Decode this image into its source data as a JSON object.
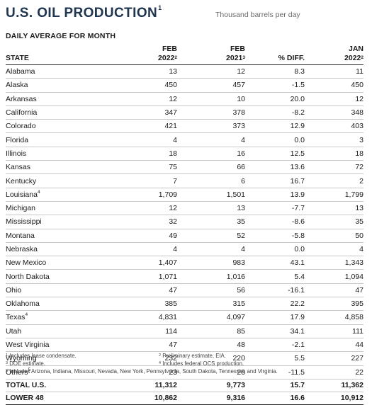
{
  "title": "U.S. OIL PRODUCTION",
  "title_note": "1",
  "units": "Thousand barrels per day",
  "subtitle": "DAILY AVERAGE FOR MONTH",
  "columns": [
    {
      "line1": "",
      "line2": "STATE",
      "note": ""
    },
    {
      "line1": "FEB",
      "line2": "2022",
      "note": "2"
    },
    {
      "line1": "FEB",
      "line2": "2021",
      "note": "3"
    },
    {
      "line1": "",
      "line2": "% DIFF.",
      "note": ""
    },
    {
      "line1": "JAN",
      "line2": "2022",
      "note": "2"
    }
  ],
  "rows": [
    {
      "state": "Alabama",
      "note": "",
      "feb2022": "13",
      "feb2021": "12",
      "diff": "8.3",
      "jan2022": "11"
    },
    {
      "state": "Alaska",
      "note": "",
      "feb2022": "450",
      "feb2021": "457",
      "diff": "-1.5",
      "jan2022": "450"
    },
    {
      "state": "Arkansas",
      "note": "",
      "feb2022": "12",
      "feb2021": "10",
      "diff": "20.0",
      "jan2022": "12"
    },
    {
      "state": "California",
      "note": "",
      "feb2022": "347",
      "feb2021": "378",
      "diff": "-8.2",
      "jan2022": "348"
    },
    {
      "state": "Colorado",
      "note": "",
      "feb2022": "421",
      "feb2021": "373",
      "diff": "12.9",
      "jan2022": "403"
    },
    {
      "state": "Florida",
      "note": "",
      "feb2022": "4",
      "feb2021": "4",
      "diff": "0.0",
      "jan2022": "3"
    },
    {
      "state": "Illinois",
      "note": "",
      "feb2022": "18",
      "feb2021": "16",
      "diff": "12.5",
      "jan2022": "18"
    },
    {
      "state": "Kansas",
      "note": "",
      "feb2022": "75",
      "feb2021": "66",
      "diff": "13.6",
      "jan2022": "72"
    },
    {
      "state": "Kentucky",
      "note": "",
      "feb2022": "7",
      "feb2021": "6",
      "diff": "16.7",
      "jan2022": "2"
    },
    {
      "state": "Louisiana",
      "note": "4",
      "feb2022": "1,709",
      "feb2021": "1,501",
      "diff": "13.9",
      "jan2022": "1,799"
    },
    {
      "state": "Michigan",
      "note": "",
      "feb2022": "12",
      "feb2021": "13",
      "diff": "-7.7",
      "jan2022": "13"
    },
    {
      "state": "Mississippi",
      "note": "",
      "feb2022": "32",
      "feb2021": "35",
      "diff": "-8.6",
      "jan2022": "35"
    },
    {
      "state": "Montana",
      "note": "",
      "feb2022": "49",
      "feb2021": "52",
      "diff": "-5.8",
      "jan2022": "50"
    },
    {
      "state": "Nebraska",
      "note": "",
      "feb2022": "4",
      "feb2021": "4",
      "diff": "0.0",
      "jan2022": "4"
    },
    {
      "state": "New Mexico",
      "note": "",
      "feb2022": "1,407",
      "feb2021": "983",
      "diff": "43.1",
      "jan2022": "1,343"
    },
    {
      "state": "North Dakota",
      "note": "",
      "feb2022": "1,071",
      "feb2021": "1,016",
      "diff": "5.4",
      "jan2022": "1,094"
    },
    {
      "state": "Ohio",
      "note": "",
      "feb2022": "47",
      "feb2021": "56",
      "diff": "-16.1",
      "jan2022": "47"
    },
    {
      "state": "Oklahoma",
      "note": "",
      "feb2022": "385",
      "feb2021": "315",
      "diff": "22.2",
      "jan2022": "395"
    },
    {
      "state": "Texas",
      "note": "4",
      "feb2022": "4,831",
      "feb2021": "4,097",
      "diff": "17.9",
      "jan2022": "4,858"
    },
    {
      "state": "Utah",
      "note": "",
      "feb2022": "114",
      "feb2021": "85",
      "diff": "34.1",
      "jan2022": "111"
    },
    {
      "state": "West Virginia",
      "note": "",
      "feb2022": "47",
      "feb2021": "48",
      "diff": "-2.1",
      "jan2022": "44"
    },
    {
      "state": "Wyoming",
      "note": "",
      "feb2022": "232",
      "feb2021": "220",
      "diff": "5.5",
      "jan2022": "227"
    },
    {
      "state": "Others",
      "note": "5",
      "feb2022": "23",
      "feb2021": "26",
      "diff": "-11.5",
      "jan2022": "22"
    }
  ],
  "totals": [
    {
      "state": "TOTAL U.S.",
      "feb2022": "11,312",
      "feb2021": "9,773",
      "diff": "15.7",
      "jan2022": "11,362"
    },
    {
      "state": "LOWER 48",
      "feb2022": "10,862",
      "feb2021": "9,316",
      "diff": "16.6",
      "jan2022": "10,912"
    }
  ],
  "footnotes": {
    "n1": {
      "mark": "1",
      "text": "Includes lease condensate."
    },
    "n2": {
      "mark": "2",
      "text": "Preliminary estimate, EIA."
    },
    "n3": {
      "mark": "3",
      "text": "DOE estimate."
    },
    "n4": {
      "mark": "4",
      "text": "Includes federal OCS production."
    },
    "n5": {
      "mark": "5",
      "text": "Includes Arizona, Indiana, Missouri, Nevada, New York, Pennsylvania, South Dakota, Tennessee and Virginia."
    }
  }
}
